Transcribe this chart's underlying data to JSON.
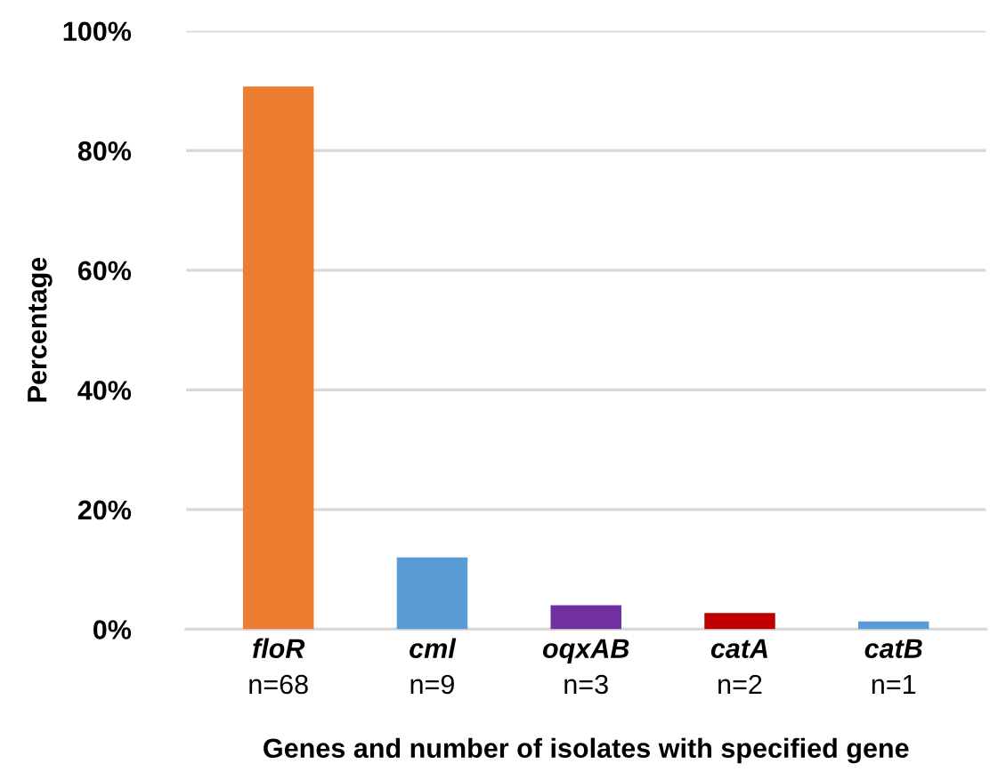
{
  "chart_data": {
    "type": "bar",
    "categories": [
      "floR\nn=68",
      "cml\nn=9",
      "oqxAB\nn=3",
      "catA\nn=2",
      "catB\nn=1"
    ],
    "values": [
      90.7,
      12.0,
      4.0,
      2.7,
      1.3
    ],
    "colors": [
      "#ed7d31",
      "#5b9bd5",
      "#7030a0",
      "#c00000",
      "#5b9bd5"
    ],
    "xlabel": "Genes and number of isolates with specified gene",
    "ylabel": "Percentage",
    "ylim": [
      0,
      100
    ],
    "yticks": [
      {
        "value": 0,
        "label": "0%"
      },
      {
        "value": 20,
        "label": "20%"
      },
      {
        "value": 40,
        "label": "40%"
      },
      {
        "value": 60,
        "label": "60%"
      },
      {
        "value": 80,
        "label": "80%"
      },
      {
        "value": 100,
        "label": "100%"
      }
    ],
    "grid": "y"
  }
}
